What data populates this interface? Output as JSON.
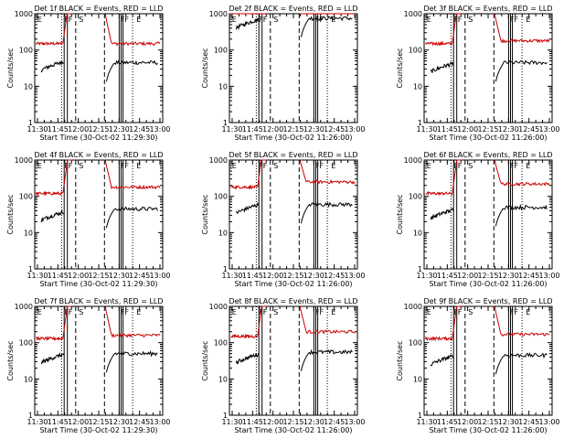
{
  "chart_data": [
    {
      "type": "line",
      "title": "Det 1f BLACK = Events, RED = LLD",
      "xlabel": "Start Time (30-Oct-02 11:29:30)",
      "ylabel": "Counts/sec",
      "x_ticks": [
        "11:30",
        "11:45",
        "12:00",
        "12:15",
        "12:30",
        "12:45",
        "13:00"
      ],
      "y_ticks": [
        "1",
        "10",
        "100",
        "1000"
      ],
      "ylim": [
        1,
        1000
      ],
      "y_scale": "log",
      "markers": [
        "E",
        "FF",
        "S",
        "FF",
        "E"
      ],
      "series": [
        {
          "name": "BLACK = Events",
          "color": "#000000",
          "level_before": 45,
          "level_after": 45
        },
        {
          "name": "RED = LLD",
          "color": "#cc0000",
          "level_before": 150,
          "level_after": 150
        }
      ]
    },
    {
      "type": "line",
      "title": "Det 2f BLACK = Events, RED = LLD",
      "xlabel": "Start Time (30-Oct-02 11:26:00)",
      "ylabel": "Counts/sec",
      "x_ticks": [
        "11:30",
        "11:45",
        "12:00",
        "12:15",
        "12:30",
        "12:45",
        "13:00"
      ],
      "y_ticks": [
        "1",
        "10",
        "100",
        "1000"
      ],
      "ylim": [
        1,
        1000
      ],
      "y_scale": "log",
      "markers": [
        "E",
        "FF",
        "S",
        "FF",
        "E"
      ],
      "series": [
        {
          "name": "BLACK = Events",
          "color": "#000000",
          "level_before": 650,
          "level_after": 750
        },
        {
          "name": "RED = LLD",
          "color": "#cc0000",
          "level_before": 1300,
          "level_after": 1300
        }
      ]
    },
    {
      "type": "line",
      "title": "Det 3f BLACK = Events, RED = LLD",
      "xlabel": "Start Time (30-Oct-02 11:26:00)",
      "ylabel": "Counts/sec",
      "x_ticks": [
        "11:30",
        "11:45",
        "12:00",
        "12:15",
        "12:30",
        "12:45",
        "13:00"
      ],
      "y_ticks": [
        "1",
        "10",
        "100",
        "1000"
      ],
      "ylim": [
        1,
        1000
      ],
      "y_scale": "log",
      "markers": [
        "E",
        "FF",
        "S",
        "FF",
        "E"
      ],
      "series": [
        {
          "name": "BLACK = Events",
          "color": "#000000",
          "level_before": 40,
          "level_after": 45
        },
        {
          "name": "RED = LLD",
          "color": "#cc0000",
          "level_before": 150,
          "level_after": 180
        }
      ]
    },
    {
      "type": "line",
      "title": "Det 4f BLACK = Events, RED = LLD",
      "xlabel": "Start Time (30-Oct-02 11:29:30)",
      "ylabel": "Counts/sec",
      "x_ticks": [
        "11:30",
        "11:45",
        "12:00",
        "12:15",
        "12:30",
        "12:45",
        "13:00"
      ],
      "y_ticks": [
        "1",
        "10",
        "100",
        "1000"
      ],
      "ylim": [
        1,
        1000
      ],
      "y_scale": "log",
      "markers": [
        "E",
        "FF",
        "S",
        "FF",
        "E"
      ],
      "series": [
        {
          "name": "BLACK = Events",
          "color": "#000000",
          "level_before": 35,
          "level_after": 45
        },
        {
          "name": "RED = LLD",
          "color": "#cc0000",
          "level_before": 120,
          "level_after": 180
        }
      ]
    },
    {
      "type": "line",
      "title": "Det 5f BLACK = Events, RED = LLD",
      "xlabel": "Start Time (30-Oct-02 11:26:00)",
      "ylabel": "Counts/sec",
      "x_ticks": [
        "11:30",
        "11:45",
        "12:00",
        "12:15",
        "12:30",
        "12:45",
        "13:00"
      ],
      "y_ticks": [
        "1",
        "10",
        "100",
        "1000"
      ],
      "ylim": [
        1,
        1000
      ],
      "y_scale": "log",
      "markers": [
        "E",
        "FF",
        "S",
        "FF",
        "E"
      ],
      "series": [
        {
          "name": "BLACK = Events",
          "color": "#000000",
          "level_before": 55,
          "level_after": 60
        },
        {
          "name": "RED = LLD",
          "color": "#cc0000",
          "level_before": 180,
          "level_after": 250
        }
      ]
    },
    {
      "type": "line",
      "title": "Det 6f BLACK = Events, RED = LLD",
      "xlabel": "Start Time (30-Oct-02 11:26:00)",
      "ylabel": "Counts/sec",
      "x_ticks": [
        "11:30",
        "11:45",
        "12:00",
        "12:15",
        "12:30",
        "12:45",
        "13:00"
      ],
      "y_ticks": [
        "1",
        "10",
        "100",
        "1000"
      ],
      "ylim": [
        1,
        1000
      ],
      "y_scale": "log",
      "markers": [
        "E",
        "FF",
        "S",
        "FF",
        "E"
      ],
      "series": [
        {
          "name": "BLACK = Events",
          "color": "#000000",
          "level_before": 40,
          "level_after": 50
        },
        {
          "name": "RED = LLD",
          "color": "#cc0000",
          "level_before": 120,
          "level_after": 220
        }
      ]
    },
    {
      "type": "line",
      "title": "Det 7f BLACK = Events, RED = LLD",
      "xlabel": "Start Time (30-Oct-02 11:29:30)",
      "ylabel": "Counts/sec",
      "x_ticks": [
        "11:30",
        "11:45",
        "12:00",
        "12:15",
        "12:30",
        "12:45",
        "13:00"
      ],
      "y_ticks": [
        "1",
        "10",
        "100",
        "1000"
      ],
      "ylim": [
        1,
        1000
      ],
      "y_scale": "log",
      "markers": [
        "E",
        "FF",
        "S",
        "FF",
        "E"
      ],
      "series": [
        {
          "name": "BLACK = Events",
          "color": "#000000",
          "level_before": 45,
          "level_after": 50
        },
        {
          "name": "RED = LLD",
          "color": "#cc0000",
          "level_before": 130,
          "level_after": 160
        }
      ]
    },
    {
      "type": "line",
      "title": "Det 8f BLACK = Events, RED = LLD",
      "xlabel": "Start Time (30-Oct-02 11:26:00)",
      "ylabel": "Counts/sec",
      "x_ticks": [
        "11:30",
        "11:45",
        "12:00",
        "12:15",
        "12:30",
        "12:45",
        "13:00"
      ],
      "y_ticks": [
        "1",
        "10",
        "100",
        "1000"
      ],
      "ylim": [
        1,
        1000
      ],
      "y_scale": "log",
      "markers": [
        "E",
        "FF",
        "S",
        "FF",
        "E"
      ],
      "series": [
        {
          "name": "BLACK = Events",
          "color": "#000000",
          "level_before": 45,
          "level_after": 55
        },
        {
          "name": "RED = LLD",
          "color": "#cc0000",
          "level_before": 150,
          "level_after": 200
        }
      ]
    },
    {
      "type": "line",
      "title": "Det 9f BLACK = Events, RED = LLD",
      "xlabel": "Start Time (30-Oct-02 11:26:00)",
      "ylabel": "Counts/sec",
      "x_ticks": [
        "11:30",
        "11:45",
        "12:00",
        "12:15",
        "12:30",
        "12:45",
        "13:00"
      ],
      "y_ticks": [
        "1",
        "10",
        "100",
        "1000"
      ],
      "ylim": [
        1,
        1000
      ],
      "y_scale": "log",
      "markers": [
        "E",
        "FF",
        "S",
        "FF",
        "E"
      ],
      "series": [
        {
          "name": "BLACK = Events",
          "color": "#000000",
          "level_before": 40,
          "level_after": 45
        },
        {
          "name": "RED = LLD",
          "color": "#cc0000",
          "level_before": 130,
          "level_after": 170
        }
      ]
    }
  ]
}
